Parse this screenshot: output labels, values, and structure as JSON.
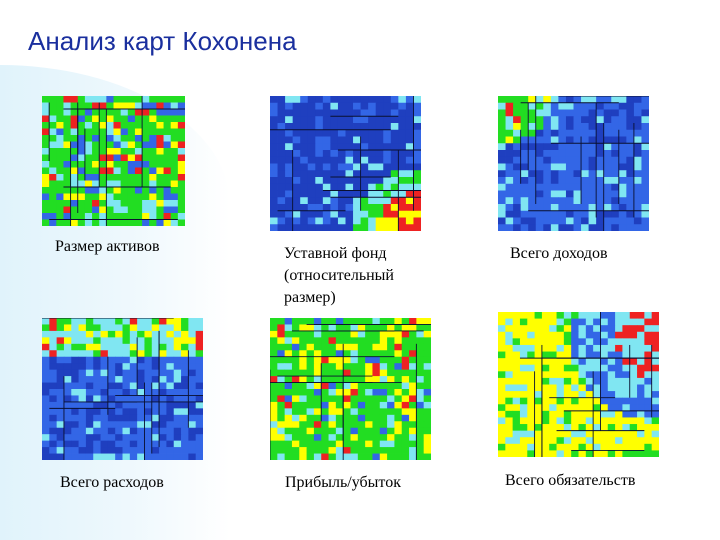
{
  "slide": {
    "title": "Анализ карт Кохонена"
  },
  "maps": [
    {
      "caption": "Размер активов",
      "palette": "assets"
    },
    {
      "caption": "Уставной фонд (относительный размер)",
      "palette": "fund"
    },
    {
      "caption": "Всего доходов",
      "palette": "income"
    },
    {
      "caption": "Всего расходов",
      "palette": "expenses"
    },
    {
      "caption": "Прибыль/убыток",
      "palette": "profit"
    },
    {
      "caption": "Всего обязательств",
      "palette": "liabilities"
    }
  ],
  "colors": {
    "title": "#1a2f9e",
    "dark_blue": "#1f3fbf",
    "blue": "#3366e6",
    "cyan": "#80e6f2",
    "green": "#22dd22",
    "yellow": "#ffff00",
    "red": "#ee2222"
  }
}
